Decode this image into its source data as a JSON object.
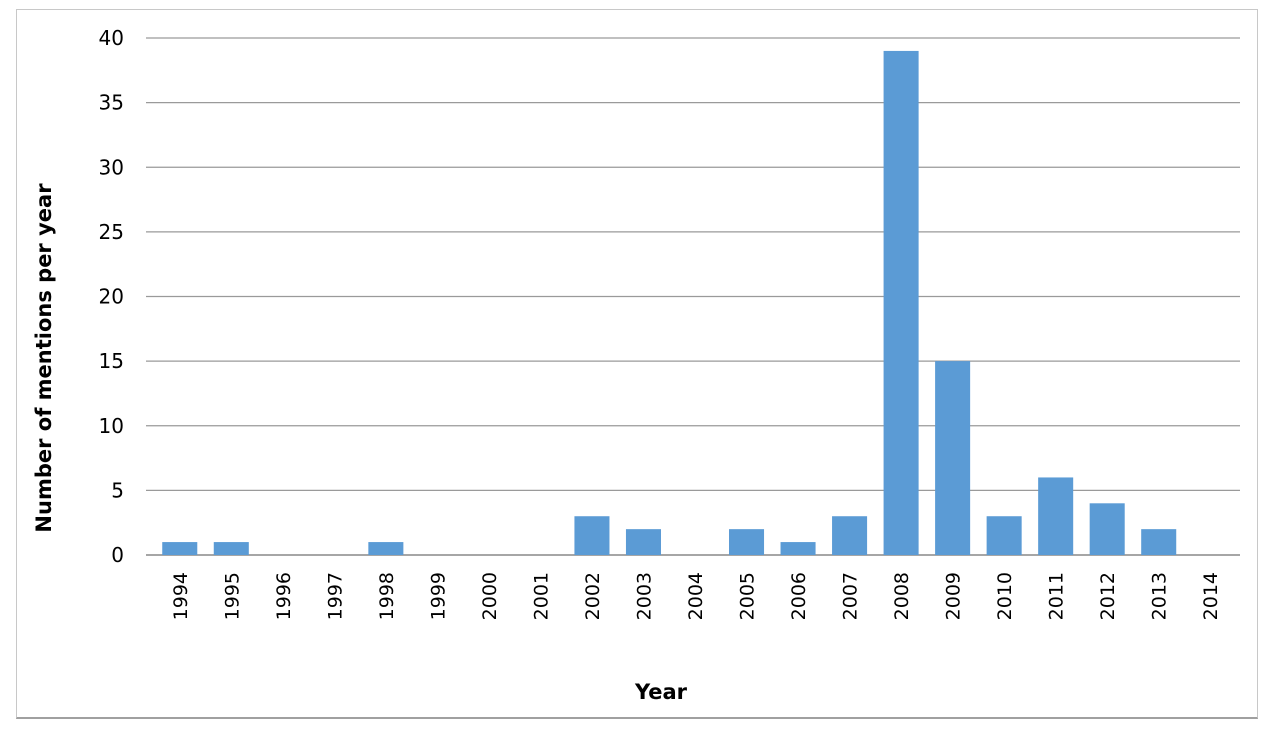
{
  "chart_data": {
    "type": "bar",
    "title": "",
    "xlabel": "Year",
    "ylabel": "Number of mentions per year",
    "ylim": [
      0,
      40
    ],
    "yticks": [
      "0",
      "5",
      "10",
      "15",
      "20",
      "25",
      "30",
      "35",
      "40"
    ],
    "grid": true,
    "legend": "none",
    "bar_color": "#5b9bd5",
    "categories": [
      "1994",
      "1995",
      "1996",
      "1997",
      "1998",
      "1999",
      "2000",
      "2001",
      "2002",
      "2003",
      "2004",
      "2005",
      "2006",
      "2007",
      "2008",
      "2009",
      "2010",
      "2011",
      "2012",
      "2013",
      "2014"
    ],
    "values": [
      1,
      1,
      0,
      0,
      1,
      0,
      0,
      0,
      3,
      2,
      0,
      2,
      1,
      3,
      39,
      15,
      3,
      6,
      4,
      2,
      0
    ]
  }
}
